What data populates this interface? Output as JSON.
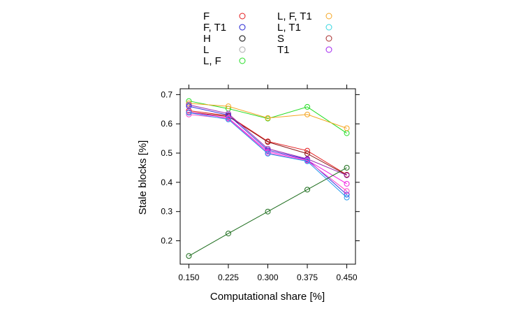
{
  "chart_data": {
    "type": "line",
    "title": "",
    "xlabel": "Computational share [%]",
    "ylabel": "Stale blocks [%]",
    "x": [
      0.15,
      0.225,
      0.3,
      0.375,
      0.45
    ],
    "x_tick_labels": [
      "0.150",
      "0.225",
      "0.300",
      "0.375",
      "0.450"
    ],
    "y_ticks": [
      0.2,
      0.3,
      0.4,
      0.5,
      0.6,
      0.7
    ],
    "y_tick_labels": [
      "0.2",
      "0.3",
      "0.4",
      "0.5",
      "0.6",
      "0.7"
    ],
    "xlim": [
      0.1335,
      0.4665
    ],
    "ylim": [
      0.12,
      0.72
    ],
    "grid": false,
    "legend_position": "top",
    "legend": [
      {
        "name": "F",
        "color": "#e41a1c"
      },
      {
        "name": "F, T1",
        "color": "#1f1fd0"
      },
      {
        "name": "H",
        "color": "#000000"
      },
      {
        "name": "L",
        "color": "#aaaaaa"
      },
      {
        "name": "L, F",
        "color": "#22dd22"
      },
      {
        "name": "L, F, T1",
        "color": "#f5a623"
      },
      {
        "name": "L, T1",
        "color": "#33d6e0"
      },
      {
        "name": "S",
        "color": "#a52a2a"
      },
      {
        "name": "T1",
        "color": "#a020f0"
      }
    ],
    "series": [
      {
        "name": "L, F",
        "color": "#22dd22",
        "values": [
          0.678,
          0.652,
          0.618,
          0.658,
          0.568
        ]
      },
      {
        "name": "L, F, T1",
        "color": "#f5a623",
        "values": [
          0.67,
          0.66,
          0.62,
          0.632,
          0.585
        ]
      },
      {
        "color": "#e41a1c",
        "values": [
          0.645,
          0.628,
          0.54,
          0.508,
          0.426
        ]
      },
      {
        "color": "#8b1a1a",
        "values": [
          0.64,
          0.625,
          0.538,
          0.498,
          0.425
        ]
      },
      {
        "color": "#9a2ab0",
        "values": [
          0.665,
          0.635,
          0.515,
          0.48,
          0.424
        ]
      },
      {
        "color": "#3333dd",
        "values": [
          0.66,
          0.63,
          0.51,
          0.478,
          0.358
        ]
      },
      {
        "color": "#f020e0",
        "values": [
          0.64,
          0.62,
          0.505,
          0.476,
          0.395
        ]
      },
      {
        "color": "#ff44cc",
        "values": [
          0.632,
          0.618,
          0.5,
          0.474,
          0.37
        ]
      },
      {
        "color": "#2299ee",
        "values": [
          0.638,
          0.615,
          0.498,
          0.472,
          0.348
        ]
      },
      {
        "color": "#1a6b1a",
        "values": [
          0.148,
          0.225,
          0.3,
          0.375,
          0.45
        ]
      }
    ]
  }
}
